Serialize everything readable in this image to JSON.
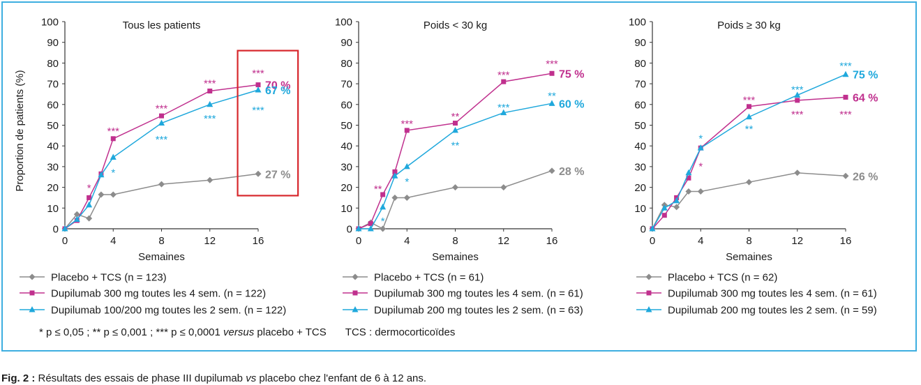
{
  "colors": {
    "placebo": "#8c8c8c",
    "dupi_q4w": "#c0308e",
    "dupi_q2w": "#1fa8dc",
    "frame": "#3daee0",
    "highlight_box": "#d7262b"
  },
  "footnote": {
    "part1": "* p ≤ 0,05 ; ** p ≤ 0,001 ; *** p ≤ 0,0001 ",
    "versus": "versus",
    "part2": " placebo + TCS",
    "tcs": "TCS : dermocorticoïdes"
  },
  "caption": {
    "label": "Fig. 2 :",
    "text": " Résultats des essais de phase III dupilumab ",
    "vs": "vs",
    "text2": " placebo chez l'enfant de 6 à 12 ans."
  },
  "chart_data": [
    {
      "type": "line",
      "title": "Tous les patients",
      "xlabel": "Semaines",
      "ylabel": "Proportion de patients (%)",
      "xlim": [
        0,
        16
      ],
      "ylim": [
        0,
        100
      ],
      "x_ticks": [
        0,
        4,
        8,
        12,
        16
      ],
      "y_ticks": [
        0,
        10,
        20,
        30,
        40,
        50,
        60,
        70,
        80,
        90,
        100
      ],
      "series": [
        {
          "name": "Placebo + TCS (n = 123)",
          "color_key": "placebo",
          "marker": "diamond",
          "x": [
            0,
            1,
            2,
            3,
            4,
            8,
            12,
            16
          ],
          "y": [
            0,
            7,
            5,
            16.5,
            16.5,
            21.5,
            23.5,
            26.5
          ],
          "end_label": "27 %"
        },
        {
          "name": "Dupilumab 300 mg toutes les 4 sem. (n = 122)",
          "color_key": "dupi_q4w",
          "marker": "square",
          "x": [
            0,
            1,
            2,
            3,
            4,
            8,
            12,
            16
          ],
          "y": [
            0,
            4,
            15,
            26.5,
            43.5,
            54.5,
            66.5,
            69.5
          ],
          "end_label": "70 %"
        },
        {
          "name": "Dupilumab 100/200 mg toutes les 2 sem. (n = 122)",
          "color_key": "dupi_q2w",
          "marker": "triangle",
          "x": [
            0,
            1,
            2,
            3,
            4,
            8,
            12,
            16
          ],
          "y": [
            0,
            4.5,
            11.5,
            26,
            34.5,
            51,
            60,
            67
          ],
          "end_label": "67 %"
        }
      ],
      "annotations": [
        {
          "text": "*",
          "x": 2,
          "y": 20,
          "color_key": "dupi_q4w"
        },
        {
          "text": "*",
          "x": 4,
          "y": 27.5,
          "color_key": "dupi_q2w"
        },
        {
          "text": "***",
          "x": 4,
          "y": 47.5,
          "color_key": "dupi_q4w"
        },
        {
          "text": "***",
          "x": 8,
          "y": 58.5,
          "color_key": "dupi_q4w"
        },
        {
          "text": "***",
          "x": 8,
          "y": 43.5,
          "color_key": "dupi_q2w"
        },
        {
          "text": "***",
          "x": 12,
          "y": 70.5,
          "color_key": "dupi_q4w"
        },
        {
          "text": "***",
          "x": 12,
          "y": 53.5,
          "color_key": "dupi_q2w"
        },
        {
          "text": "***",
          "x": 16,
          "y": 75.5,
          "color_key": "dupi_q4w"
        },
        {
          "text": "***",
          "x": 16,
          "y": 57.5,
          "color_key": "dupi_q2w"
        }
      ],
      "highlight": {
        "x_from": 14.3,
        "x_to": 19.3,
        "y_from": 16,
        "y_to": 86
      }
    },
    {
      "type": "line",
      "title": "Poids < 30 kg",
      "xlabel": "Semaines",
      "xlim": [
        0,
        16
      ],
      "ylim": [
        0,
        100
      ],
      "x_ticks": [
        0,
        4,
        8,
        12,
        16
      ],
      "y_ticks": [
        0,
        10,
        20,
        30,
        40,
        50,
        60,
        70,
        80,
        90,
        100
      ],
      "series": [
        {
          "name": "Placebo + TCS (n = 61)",
          "color_key": "placebo",
          "marker": "diamond",
          "x": [
            0,
            1,
            2,
            3,
            4,
            8,
            12,
            16
          ],
          "y": [
            0,
            3,
            0,
            15,
            15,
            20,
            20,
            28
          ],
          "end_label": "28 %"
        },
        {
          "name": "Dupilumab 300 mg toutes les 4 sem. (n = 61)",
          "color_key": "dupi_q4w",
          "marker": "square",
          "x": [
            0,
            1,
            2,
            3,
            4,
            8,
            12,
            16
          ],
          "y": [
            0,
            2.5,
            16.5,
            27.5,
            47.5,
            51,
            71,
            75
          ],
          "end_label": "75 %"
        },
        {
          "name": "Dupilumab 200 mg toutes les 2 sem. (n = 63)",
          "color_key": "dupi_q2w",
          "marker": "triangle",
          "x": [
            0,
            1,
            2,
            3,
            4,
            8,
            12,
            16
          ],
          "y": [
            0,
            0,
            10.5,
            25.5,
            30,
            47.5,
            56,
            60.5
          ],
          "end_label": "60 %"
        }
      ],
      "annotations": [
        {
          "text": "**",
          "x": 1.6,
          "y": 19.5,
          "color_key": "dupi_q4w"
        },
        {
          "text": "*",
          "x": 2,
          "y": 4,
          "color_key": "dupi_q2w"
        },
        {
          "text": "*",
          "x": 4,
          "y": 23,
          "color_key": "dupi_q2w"
        },
        {
          "text": "***",
          "x": 4,
          "y": 51,
          "color_key": "dupi_q4w"
        },
        {
          "text": "**",
          "x": 8,
          "y": 54.5,
          "color_key": "dupi_q4w"
        },
        {
          "text": "**",
          "x": 8,
          "y": 40.5,
          "color_key": "dupi_q2w"
        },
        {
          "text": "***",
          "x": 12,
          "y": 74.5,
          "color_key": "dupi_q4w"
        },
        {
          "text": "***",
          "x": 12,
          "y": 59,
          "color_key": "dupi_q2w"
        },
        {
          "text": "***",
          "x": 16,
          "y": 80,
          "color_key": "dupi_q4w"
        },
        {
          "text": "**",
          "x": 16,
          "y": 64.5,
          "color_key": "dupi_q2w"
        }
      ]
    },
    {
      "type": "line",
      "title": "Poids ≥ 30 kg",
      "xlabel": "Semaines",
      "xlim": [
        0,
        16
      ],
      "ylim": [
        0,
        100
      ],
      "x_ticks": [
        0,
        4,
        8,
        12,
        16
      ],
      "y_ticks": [
        0,
        10,
        20,
        30,
        40,
        50,
        60,
        70,
        80,
        90,
        100
      ],
      "series": [
        {
          "name": "Placebo + TCS (n = 62)",
          "color_key": "placebo",
          "marker": "diamond",
          "x": [
            0,
            1,
            2,
            3,
            4,
            8,
            12,
            16
          ],
          "y": [
            0,
            11.5,
            10.5,
            18,
            18,
            22.5,
            27,
            25.5
          ],
          "end_label": "26 %"
        },
        {
          "name": "Dupilumab 300 mg toutes les 4 sem. (n = 61)",
          "color_key": "dupi_q4w",
          "marker": "square",
          "x": [
            0,
            1,
            2,
            3,
            4,
            8,
            12,
            16
          ],
          "y": [
            0,
            6.5,
            15,
            24.5,
            39,
            59,
            62,
            63.5
          ],
          "end_label": "64 %"
        },
        {
          "name": "Dupilumab 200 mg toutes les 2 sem. (n = 59)",
          "color_key": "dupi_q2w",
          "marker": "triangle",
          "x": [
            0,
            1,
            2,
            3,
            4,
            8,
            12,
            16
          ],
          "y": [
            0,
            10,
            13.5,
            27,
            39,
            54,
            64.5,
            74.5
          ],
          "end_label": "75 %"
        }
      ],
      "annotations": [
        {
          "text": "*",
          "x": 4,
          "y": 44,
          "color_key": "dupi_q2w"
        },
        {
          "text": "*",
          "x": 4,
          "y": 30.5,
          "color_key": "dupi_q4w"
        },
        {
          "text": "***",
          "x": 8,
          "y": 62.5,
          "color_key": "dupi_q4w"
        },
        {
          "text": "**",
          "x": 8,
          "y": 48.5,
          "color_key": "dupi_q2w"
        },
        {
          "text": "***",
          "x": 12,
          "y": 67.5,
          "color_key": "dupi_q2w"
        },
        {
          "text": "***",
          "x": 12,
          "y": 55.5,
          "color_key": "dupi_q4w"
        },
        {
          "text": "***",
          "x": 16,
          "y": 79,
          "color_key": "dupi_q2w"
        },
        {
          "text": "***",
          "x": 16,
          "y": 55.5,
          "color_key": "dupi_q4w"
        }
      ]
    }
  ]
}
